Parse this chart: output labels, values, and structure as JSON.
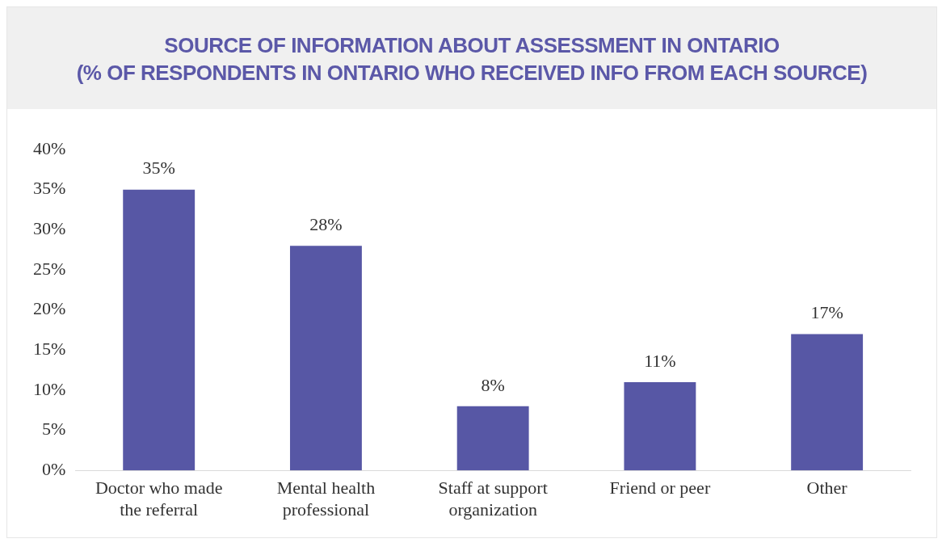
{
  "chart_data": {
    "type": "bar",
    "title": "SOURCE OF INFORMATION ABOUT ASSESSMENT IN ONTARIO",
    "subtitle": "(% OF RESPONDENTS IN ONTARIO WHO RECEIVED INFO FROM EACH SOURCE)",
    "categories": [
      "Doctor who made the referral",
      "Mental health professional",
      "Staff at support organization",
      "Friend or peer",
      "Other"
    ],
    "values": [
      35,
      28,
      8,
      11,
      17
    ],
    "value_labels": [
      "35%",
      "28%",
      "8%",
      "11%",
      "17%"
    ],
    "color": "#5757a5",
    "ylim": [
      0,
      40
    ],
    "yticks": [
      {
        "value": 0,
        "label": "0%"
      },
      {
        "value": 5,
        "label": "5%"
      },
      {
        "value": 10,
        "label": "10%"
      },
      {
        "value": 15,
        "label": "15%"
      },
      {
        "value": 20,
        "label": "20%"
      },
      {
        "value": 25,
        "label": "25%"
      },
      {
        "value": 30,
        "label": "30%"
      },
      {
        "value": 35,
        "label": "35%"
      },
      {
        "value": 40,
        "label": "40%"
      }
    ],
    "grid": false,
    "legend": false
  }
}
